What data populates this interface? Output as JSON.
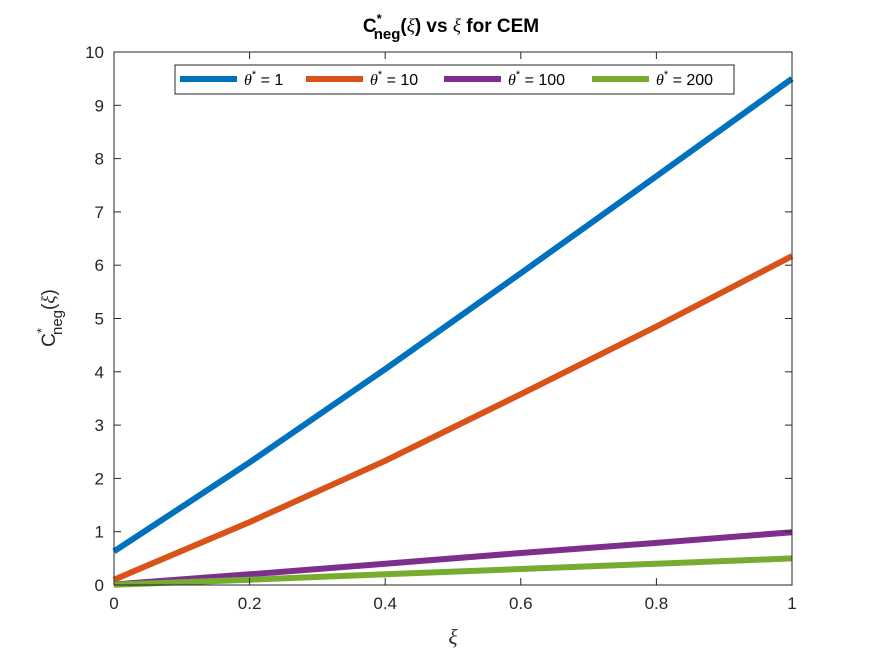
{
  "chart_data": {
    "type": "line",
    "title": {
      "main": "C",
      "sup": "*",
      "sub": "neg",
      "rest1": "(",
      "xi": "ξ",
      "rest2": ") vs ",
      "xi2": "ξ",
      "rest3": " for CEM"
    },
    "xlabel": "ξ",
    "ylabel": {
      "main": "C",
      "sup": "*",
      "sub": "neg",
      "open": "(",
      "xi": "ξ",
      "close": ")"
    },
    "xlim": [
      0,
      1
    ],
    "ylim": [
      0,
      10
    ],
    "xticks": [
      0,
      0.2,
      0.4,
      0.6,
      0.8,
      1
    ],
    "xtick_labels": [
      "0",
      "0.2",
      "0.4",
      "0.6",
      "0.8",
      "1"
    ],
    "yticks": [
      0,
      1,
      2,
      3,
      4,
      5,
      6,
      7,
      8,
      9,
      10
    ],
    "ytick_labels": [
      "0",
      "1",
      "2",
      "3",
      "4",
      "5",
      "6",
      "7",
      "8",
      "9",
      "10"
    ],
    "grid": false,
    "legend_position": "top",
    "legend_orientation": "horizontal",
    "series": [
      {
        "name": "θ* = 1",
        "legend_theta": "θ",
        "legend_sup": "*",
        "legend_rest": " = 1",
        "color": "#0072BD",
        "x": [
          0,
          0.2,
          0.4,
          0.6,
          0.8,
          1
        ],
        "y": [
          0.63,
          2.3,
          4.05,
          5.85,
          7.67,
          9.5
        ]
      },
      {
        "name": "θ* = 10",
        "legend_theta": "θ",
        "legend_sup": "*",
        "legend_rest": " = 10",
        "color": "#D95319",
        "x": [
          0,
          0.2,
          0.4,
          0.6,
          0.8,
          1
        ],
        "y": [
          0.1,
          1.18,
          2.33,
          3.58,
          4.85,
          6.17
        ]
      },
      {
        "name": "θ* = 100",
        "legend_theta": "θ",
        "legend_sup": "*",
        "legend_rest": " = 100",
        "color": "#7E2F8E",
        "x": [
          0,
          0.2,
          0.4,
          0.6,
          0.8,
          1
        ],
        "y": [
          0.01,
          0.2,
          0.4,
          0.6,
          0.79,
          0.99
        ]
      },
      {
        "name": "θ* = 200",
        "legend_theta": "θ",
        "legend_sup": "*",
        "legend_rest": " = 200",
        "color": "#77AC30",
        "x": [
          0,
          0.2,
          0.4,
          0.6,
          0.8,
          1
        ],
        "y": [
          0.005,
          0.1,
          0.2,
          0.3,
          0.4,
          0.5
        ]
      }
    ]
  }
}
